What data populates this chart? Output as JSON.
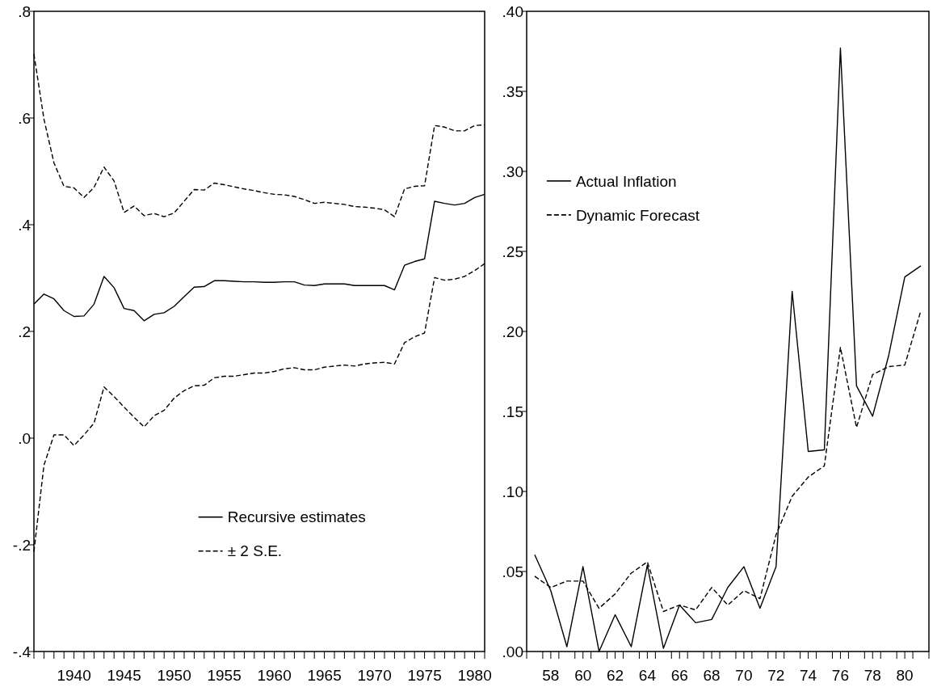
{
  "chart_data": [
    {
      "type": "line",
      "x": [
        1936,
        1937,
        1938,
        1939,
        1940,
        1941,
        1942,
        1943,
        1944,
        1945,
        1946,
        1947,
        1948,
        1949,
        1950,
        1951,
        1952,
        1953,
        1954,
        1955,
        1956,
        1957,
        1958,
        1959,
        1960,
        1961,
        1962,
        1963,
        1964,
        1965,
        1966,
        1967,
        1968,
        1969,
        1970,
        1971,
        1972,
        1973,
        1974,
        1975,
        1976,
        1977,
        1978,
        1979,
        1980,
        1981
      ],
      "series": [
        {
          "name": "Recursive estimates",
          "color": "#000000",
          "line_style": "solid",
          "values": [
            0.251,
            0.27,
            0.261,
            0.239,
            0.228,
            0.229,
            0.251,
            0.303,
            0.282,
            0.243,
            0.239,
            0.22,
            0.232,
            0.235,
            0.247,
            0.265,
            0.283,
            0.284,
            0.295,
            0.295,
            0.294,
            0.293,
            0.293,
            0.292,
            0.292,
            0.293,
            0.293,
            0.287,
            0.286,
            0.289,
            0.289,
            0.289,
            0.286,
            0.286,
            0.286,
            0.286,
            0.278,
            0.324,
            0.331,
            0.336,
            0.444,
            0.44,
            0.437,
            0.44,
            0.451,
            0.457
          ]
        },
        {
          "name": "± 2 S.E.",
          "color": "#000000",
          "line_style": "dashed",
          "values": [
            0.72,
            0.598,
            0.516,
            0.472,
            0.469,
            0.451,
            0.47,
            0.508,
            0.482,
            0.423,
            0.435,
            0.417,
            0.421,
            0.415,
            0.422,
            0.444,
            0.466,
            0.465,
            0.478,
            0.475,
            0.471,
            0.467,
            0.464,
            0.46,
            0.457,
            0.456,
            0.453,
            0.447,
            0.44,
            0.442,
            0.44,
            0.438,
            0.434,
            0.433,
            0.431,
            0.428,
            0.415,
            0.467,
            0.472,
            0.473,
            0.586,
            0.583,
            0.576,
            0.576,
            0.586,
            0.587
          ]
        },
        {
          "color": "#000000",
          "line_style": "dashed",
          "values": [
            -0.213,
            -0.051,
            0.006,
            0.006,
            -0.014,
            0.006,
            0.028,
            0.096,
            0.078,
            0.058,
            0.039,
            0.021,
            0.042,
            0.052,
            0.075,
            0.089,
            0.098,
            0.099,
            0.113,
            0.116,
            0.116,
            0.119,
            0.122,
            0.122,
            0.125,
            0.13,
            0.132,
            0.128,
            0.128,
            0.133,
            0.135,
            0.137,
            0.135,
            0.139,
            0.141,
            0.142,
            0.139,
            0.179,
            0.19,
            0.197,
            0.301,
            0.296,
            0.298,
            0.303,
            0.314,
            0.327
          ]
        }
      ],
      "xlim": [
        1936,
        1981
      ],
      "xticks": [
        {
          "value": 1936,
          "label": null
        },
        {
          "value": 1937,
          "label": null
        },
        {
          "value": 1938,
          "label": null
        },
        {
          "value": 1939,
          "label": null
        },
        1940,
        {
          "value": 1941,
          "label": null
        },
        {
          "value": 1942,
          "label": null
        },
        {
          "value": 1943,
          "label": null
        },
        {
          "value": 1944,
          "label": null
        },
        1945,
        {
          "value": 1946,
          "label": null
        },
        {
          "value": 1947,
          "label": null
        },
        {
          "value": 1948,
          "label": null
        },
        {
          "value": 1949,
          "label": null
        },
        1950,
        {
          "value": 1951,
          "label": null
        },
        {
          "value": 1952,
          "label": null
        },
        {
          "value": 1953,
          "label": null
        },
        {
          "value": 1954,
          "label": null
        },
        1955,
        {
          "value": 1956,
          "label": null
        },
        {
          "value": 1957,
          "label": null
        },
        {
          "value": 1958,
          "label": null
        },
        {
          "value": 1959,
          "label": null
        },
        1960,
        {
          "value": 1961,
          "label": null
        },
        {
          "value": 1962,
          "label": null
        },
        {
          "value": 1963,
          "label": null
        },
        {
          "value": 1964,
          "label": null
        },
        1965,
        {
          "value": 1966,
          "label": null
        },
        {
          "value": 1967,
          "label": null
        },
        {
          "value": 1968,
          "label": null
        },
        {
          "value": 1969,
          "label": null
        },
        1970,
        {
          "value": 1971,
          "label": null
        },
        {
          "value": 1972,
          "label": null
        },
        {
          "value": 1973,
          "label": null
        },
        {
          "value": 1974,
          "label": null
        },
        1975,
        {
          "value": 1976,
          "label": null
        },
        {
          "value": 1977,
          "label": null
        },
        {
          "value": 1978,
          "label": null
        },
        {
          "value": 1979,
          "label": null
        },
        1980,
        {
          "value": 1981,
          "label": null
        }
      ],
      "ylim": [
        -0.4,
        0.8
      ],
      "yticks": [
        {
          "value": -0.4,
          "label": "-.4"
        },
        {
          "value": -0.2,
          "label": "-.2"
        },
        {
          "value": 0,
          "label": ".0"
        },
        {
          "value": 0.2,
          "label": ".2"
        },
        {
          "value": 0.4,
          "label": ".4"
        },
        {
          "value": 0.6,
          "label": ".6"
        },
        {
          "value": 0.8,
          "label": ".8"
        }
      ],
      "legend": "bottom",
      "grid": false,
      "marker": "none"
    },
    {
      "type": "line",
      "x": [
        57,
        58,
        59,
        60,
        61,
        62,
        63,
        64,
        65,
        66,
        67,
        68,
        69,
        70,
        71,
        72,
        73,
        74,
        75,
        76,
        77,
        78,
        79,
        80,
        81
      ],
      "series": [
        {
          "name": "Actual Inflation",
          "color": "#000000",
          "line_style": "solid",
          "values": [
            0.0605,
            0.038,
            0.003,
            0.053,
            0.0,
            0.023,
            0.003,
            0.054,
            0.002,
            0.029,
            0.018,
            0.02,
            0.04,
            0.053,
            0.027,
            0.053,
            0.225,
            0.125,
            0.126,
            0.377,
            0.166,
            0.147,
            0.185,
            0.234,
            0.241
          ]
        },
        {
          "name": "Dynamic Forecast",
          "color": "#000000",
          "line_style": "dashed",
          "values": [
            0.047,
            0.04,
            0.044,
            0.044,
            0.027,
            0.036,
            0.049,
            0.056,
            0.025,
            0.029,
            0.026,
            0.04,
            0.029,
            0.038,
            0.033,
            0.073,
            0.097,
            0.109,
            0.116,
            0.19,
            0.14,
            0.173,
            0.178,
            0.179,
            0.213
          ]
        }
      ],
      "xlim": [
        56.5,
        81.5
      ],
      "xticks": [
        {
          "value": 56.5,
          "label": null
        },
        {
          "value": 57.5,
          "label": null
        },
        {
          "value": 58,
          "label": "58"
        },
        {
          "value": 58.5,
          "label": null
        },
        {
          "value": 59.5,
          "label": null
        },
        {
          "value": 60,
          "label": "60"
        },
        {
          "value": 60.5,
          "label": null
        },
        {
          "value": 61.5,
          "label": null
        },
        {
          "value": 62,
          "label": "62"
        },
        {
          "value": 62.5,
          "label": null
        },
        {
          "value": 63.5,
          "label": null
        },
        {
          "value": 64,
          "label": "64"
        },
        {
          "value": 64.5,
          "label": null
        },
        {
          "value": 65.5,
          "label": null
        },
        {
          "value": 66,
          "label": "66"
        },
        {
          "value": 66.5,
          "label": null
        },
        {
          "value": 67.5,
          "label": null
        },
        {
          "value": 68,
          "label": "68"
        },
        {
          "value": 68.5,
          "label": null
        },
        {
          "value": 69.5,
          "label": null
        },
        {
          "value": 70,
          "label": "70"
        },
        {
          "value": 70.5,
          "label": null
        },
        {
          "value": 71.5,
          "label": null
        },
        {
          "value": 72,
          "label": "72"
        },
        {
          "value": 72.5,
          "label": null
        },
        {
          "value": 73.5,
          "label": null
        },
        {
          "value": 74,
          "label": "74"
        },
        {
          "value": 74.5,
          "label": null
        },
        {
          "value": 75.5,
          "label": null
        },
        {
          "value": 76,
          "label": "76"
        },
        {
          "value": 76.5,
          "label": null
        },
        {
          "value": 77.5,
          "label": null
        },
        {
          "value": 78,
          "label": "78"
        },
        {
          "value": 78.5,
          "label": null
        },
        {
          "value": 79.5,
          "label": null
        },
        {
          "value": 80,
          "label": "80"
        },
        {
          "value": 80.5,
          "label": null
        },
        {
          "value": 81.5,
          "label": null
        }
      ],
      "ylim": [
        0,
        0.4
      ],
      "yticks": [
        {
          "value": 0,
          "label": ".00"
        },
        {
          "value": 0.05,
          "label": ".05"
        },
        {
          "value": 0.1,
          "label": ".10"
        },
        {
          "value": 0.15,
          "label": ".15"
        },
        {
          "value": 0.2,
          "label": ".20"
        },
        {
          "value": 0.25,
          "label": ".25"
        },
        {
          "value": 0.3,
          "label": ".30"
        },
        {
          "value": 0.35,
          "label": ".35"
        },
        {
          "value": 0.4,
          "label": ".40"
        }
      ],
      "legend": "top left",
      "grid": false,
      "marker": "none"
    }
  ]
}
